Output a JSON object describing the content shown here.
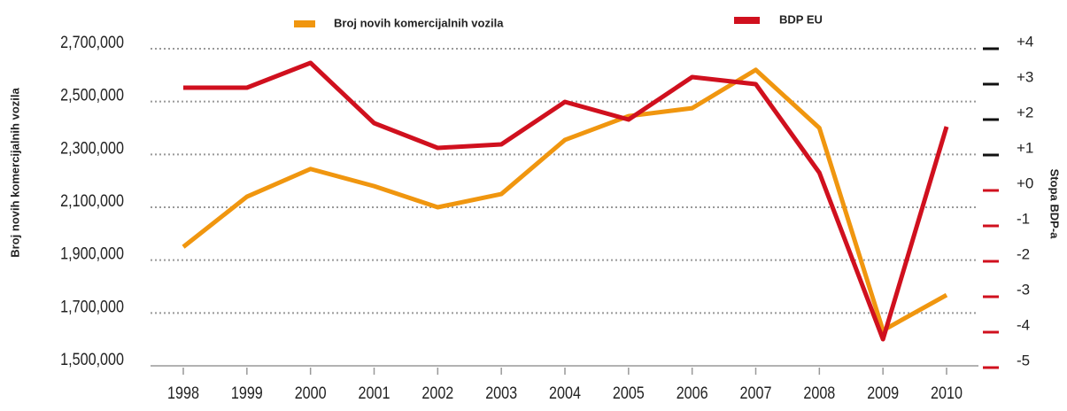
{
  "chart_data": {
    "type": "line",
    "y_label": "Broj novih komercijalnih vozila",
    "y2_label": "Stopa BDP-a",
    "categories": [
      "1998",
      "1999",
      "2000",
      "2001",
      "2002",
      "2003",
      "2004",
      "2005",
      "2006",
      "2007",
      "2008",
      "2009",
      "2010"
    ],
    "series": [
      {
        "name": "Broj novih komercijalnih vozila",
        "color": "#f0960f",
        "axis": "y",
        "values": [
          1950000,
          2140000,
          2245000,
          2180000,
          2100000,
          2150000,
          2355000,
          2445000,
          2475000,
          2620000,
          2400000,
          1634000,
          1768000
        ]
      },
      {
        "name": "BDP EU",
        "color": "#d0101e",
        "axis": "y2",
        "values": [
          2.9,
          2.9,
          3.6,
          1.9,
          1.2,
          1.3,
          2.5,
          2.0,
          3.2,
          3.0,
          0.5,
          -4.2,
          1.8
        ]
      }
    ],
    "ylim": [
      1500000,
      2700000
    ],
    "yticks": [
      {
        "value": 1500000,
        "label": "1,500,000"
      },
      {
        "value": 1700000,
        "label": "1,700,000"
      },
      {
        "value": 1900000,
        "label": "1,900,000"
      },
      {
        "value": 2100000,
        "label": "2,100,000"
      },
      {
        "value": 2300000,
        "label": "2,300,000"
      },
      {
        "value": 2500000,
        "label": "2,500,000"
      },
      {
        "value": 2700000,
        "label": "2,700,000"
      }
    ],
    "y2lim": [
      -5,
      4
    ],
    "y2ticks": [
      -5,
      -4,
      -3,
      -2,
      -1,
      {
        "value": 0,
        "label": "+0"
      },
      {
        "value": 1,
        "label": "+1"
      },
      {
        "value": 2,
        "label": "+2"
      },
      {
        "value": 3,
        "label": "+3"
      },
      {
        "value": 4,
        "label": "+4"
      }
    ],
    "grid": true
  }
}
